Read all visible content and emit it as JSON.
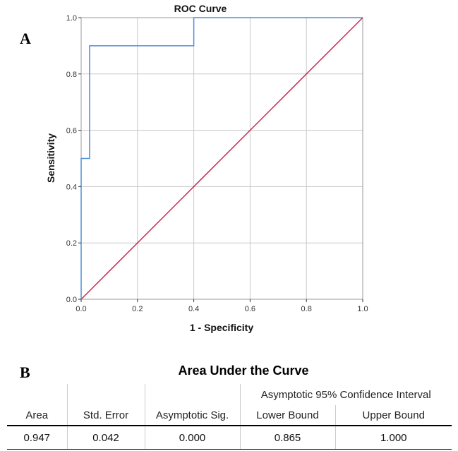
{
  "panel_labels": {
    "a": "A",
    "b": "B"
  },
  "chart_data": {
    "type": "line",
    "title": "ROC Curve",
    "xlabel": "1 - Specificity",
    "ylabel": "Sensitivity",
    "xlim": [
      0,
      1
    ],
    "ylim": [
      0,
      1
    ],
    "xticks": [
      "0.0",
      "0.2",
      "0.4",
      "0.6",
      "0.8",
      "1.0"
    ],
    "yticks": [
      "0.0",
      "0.2",
      "0.4",
      "0.6",
      "0.8",
      "1.0"
    ],
    "grid": true,
    "series": [
      {
        "color": "#4f8fd9",
        "x": [
          0.0,
          0.0,
          0.03,
          0.03,
          0.4,
          0.4,
          1.0
        ],
        "y": [
          0.0,
          0.5,
          0.5,
          0.9,
          0.9,
          1.0,
          1.0
        ]
      },
      {
        "color": "#c8264a",
        "x": [
          0.0,
          1.0
        ],
        "y": [
          0.0,
          1.0
        ]
      }
    ]
  },
  "auc_table": {
    "title": "Area Under the Curve",
    "ci_header": "Asymptotic 95% Confidence Interval",
    "columns": [
      "Area",
      "Std. Error",
      "Asymptotic Sig.",
      "Lower Bound",
      "Upper Bound"
    ],
    "rows": [
      [
        "0.947",
        "0.042",
        "0.000",
        "0.865",
        "1.000"
      ]
    ]
  }
}
